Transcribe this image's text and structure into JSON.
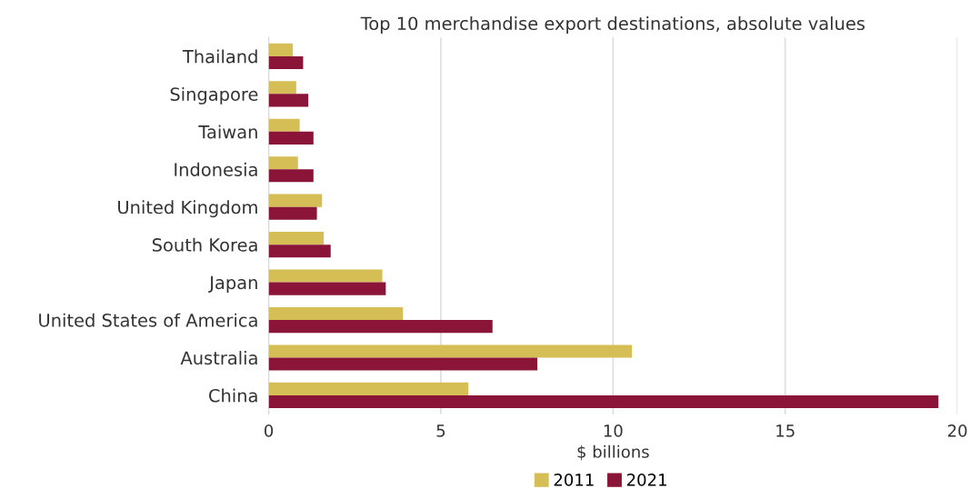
{
  "chart_data": {
    "type": "bar",
    "orientation": "horizontal",
    "title": "Top 10 merchandise export destinations, absolute values",
    "xlabel": "$ billions",
    "categories": [
      "Thailand",
      "Singapore",
      "Taiwan",
      "Indonesia",
      "United Kingdom",
      "South Korea",
      "Japan",
      "United States of America",
      "Australia",
      "China"
    ],
    "series": [
      {
        "name": "2011",
        "color": "#d4be55",
        "values": [
          0.7,
          0.8,
          0.9,
          0.85,
          1.55,
          1.6,
          3.3,
          3.9,
          10.55,
          5.8
        ]
      },
      {
        "name": "2021",
        "color": "#8b1538",
        "values": [
          1.0,
          1.15,
          1.3,
          1.3,
          1.4,
          1.8,
          3.4,
          6.5,
          7.8,
          19.45
        ]
      }
    ],
    "xlim": [
      0,
      20
    ],
    "xticks": [
      0,
      5,
      10,
      15,
      20
    ],
    "grid": "x",
    "legend": "bottom"
  }
}
